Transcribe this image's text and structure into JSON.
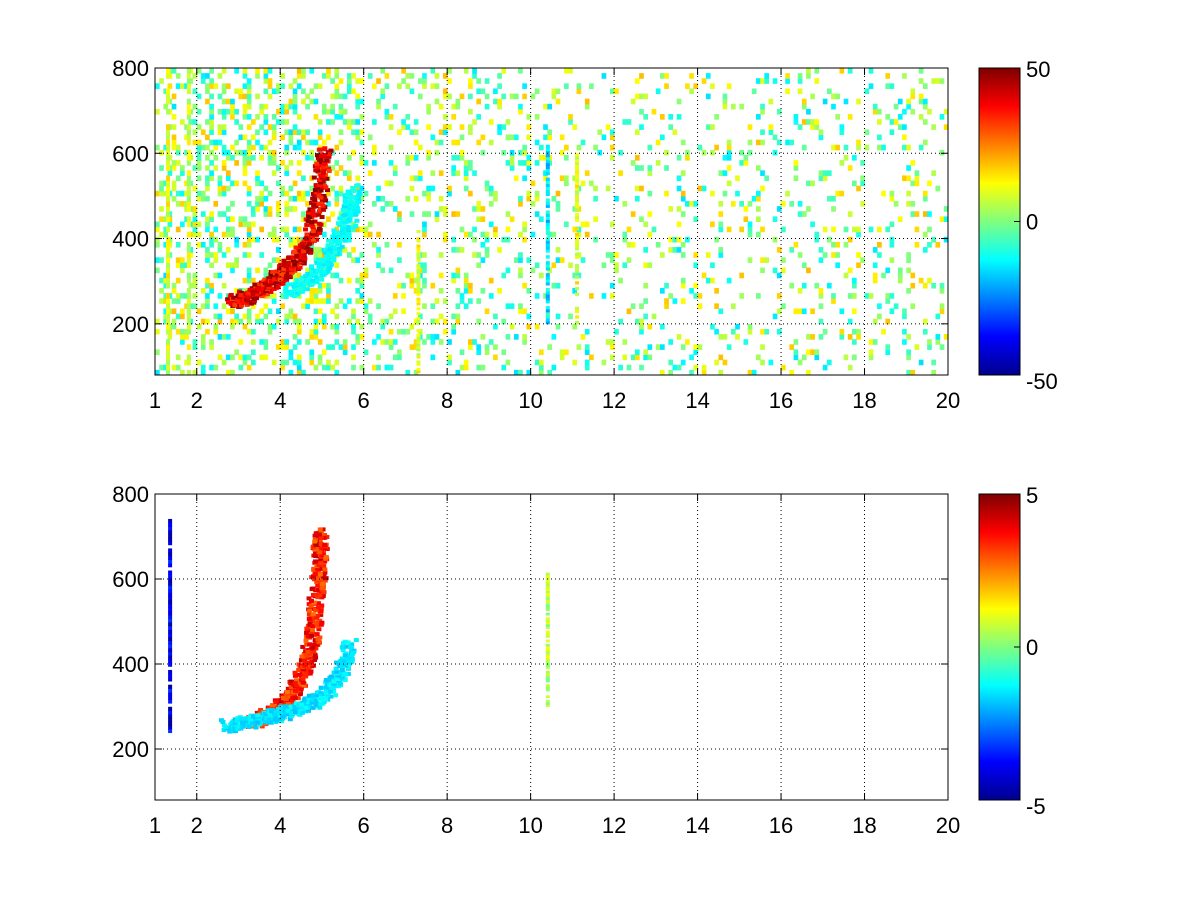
{
  "chart_data": [
    {
      "type": "heatmap",
      "title": "",
      "xlabel": "",
      "ylabel": "",
      "xlim": [
        1,
        20
      ],
      "ylim": [
        80,
        800
      ],
      "x_ticks": [
        1,
        2,
        4,
        6,
        8,
        10,
        12,
        14,
        16,
        18,
        20
      ],
      "x_tick_labels": [
        "1",
        "2",
        "4",
        "6",
        "8",
        "10",
        "12",
        "14",
        "16",
        "18",
        "20"
      ],
      "y_ticks": [
        200,
        400,
        600,
        800
      ],
      "y_tick_labels": [
        "200",
        "400",
        "600",
        "800"
      ],
      "grid": true,
      "colormap": "jet",
      "colorbar": {
        "range": [
          -50,
          50
        ],
        "ticks": [
          -50,
          0,
          50
        ],
        "tick_labels": [
          "-50",
          "0",
          "50"
        ]
      },
      "features": [
        {
          "kind": "curve-arc",
          "name": "main-arc",
          "points": [
            [
              2.8,
              255
            ],
            [
              3.2,
              270
            ],
            [
              3.6,
              290
            ],
            [
              4.0,
              320
            ],
            [
              4.4,
              360
            ],
            [
              4.7,
              420
            ],
            [
              4.9,
              520
            ],
            [
              5.0,
              620
            ]
          ],
          "value": 40
        },
        {
          "kind": "curve-arc",
          "name": "secondary-arc",
          "points": [
            [
              4.2,
              280
            ],
            [
              4.8,
              320
            ],
            [
              5.2,
              380
            ],
            [
              5.6,
              450
            ],
            [
              5.7,
              520
            ]
          ],
          "value": -12
        },
        {
          "kind": "vertical-streak",
          "x": 1.3,
          "y_range": [
            80,
            800
          ],
          "value": 10
        },
        {
          "kind": "vertical-streak",
          "x": 1.8,
          "y_range": [
            80,
            800
          ],
          "value": 8
        },
        {
          "kind": "vertical-streak",
          "x": 7.3,
          "y_range": [
            80,
            420
          ],
          "value": 10
        },
        {
          "kind": "vertical-streak",
          "x": 10.4,
          "y_range": [
            200,
            620
          ],
          "value": -15
        },
        {
          "kind": "vertical-streak",
          "x": 11.1,
          "y_range": [
            200,
            600
          ],
          "value": 10
        }
      ]
    },
    {
      "type": "heatmap",
      "title": "",
      "xlabel": "",
      "ylabel": "",
      "xlim": [
        1,
        20
      ],
      "ylim": [
        80,
        800
      ],
      "x_ticks": [
        1,
        2,
        4,
        6,
        8,
        10,
        12,
        14,
        16,
        18,
        20
      ],
      "x_tick_labels": [
        "1",
        "2",
        "4",
        "6",
        "8",
        "10",
        "12",
        "14",
        "16",
        "18",
        "20"
      ],
      "y_ticks": [
        200,
        400,
        600,
        800
      ],
      "y_tick_labels": [
        "200",
        "400",
        "600",
        "800"
      ],
      "grid": true,
      "colormap": "jet",
      "colorbar": {
        "range": [
          -5,
          5
        ],
        "ticks": [
          -5,
          0,
          5
        ],
        "tick_labels": [
          "-5",
          "0",
          "5"
        ]
      },
      "features": [
        {
          "kind": "curve-arc",
          "name": "main-arc",
          "points": [
            [
              3.2,
              265
            ],
            [
              3.8,
              290
            ],
            [
              4.2,
              330
            ],
            [
              4.5,
              380
            ],
            [
              4.7,
              450
            ],
            [
              4.8,
              540
            ],
            [
              4.9,
              640
            ],
            [
              4.9,
              720
            ]
          ],
          "value": 3.5
        },
        {
          "kind": "curve-arc",
          "name": "secondary-arc",
          "points": [
            [
              2.7,
              260
            ],
            [
              3.3,
              270
            ],
            [
              3.9,
              285
            ],
            [
              4.4,
              300
            ],
            [
              5.0,
              330
            ],
            [
              5.4,
              380
            ],
            [
              5.6,
              450
            ]
          ],
          "value": -1.5
        },
        {
          "kind": "vertical-streak",
          "x": 10.4,
          "y_range": [
            300,
            615
          ],
          "value": 0.5
        },
        {
          "kind": "vertical-streak",
          "x": 1.35,
          "y_range": [
            230,
            750
          ],
          "value": -4
        }
      ]
    }
  ]
}
